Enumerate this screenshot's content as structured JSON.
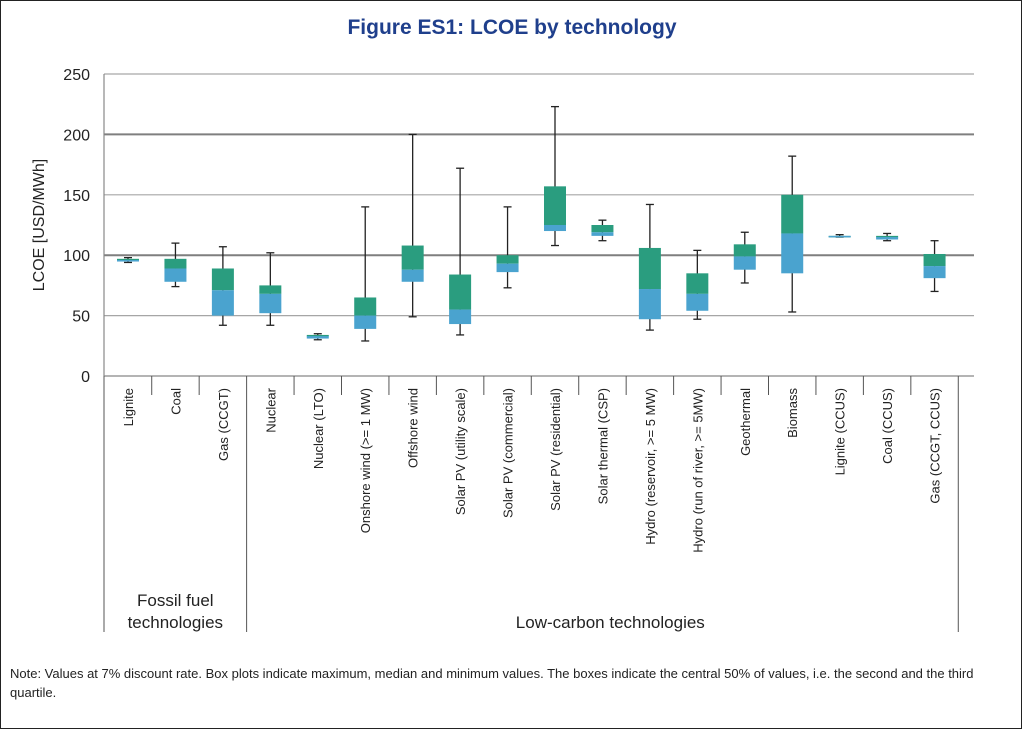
{
  "title": "Figure ES1: LCOE by technology",
  "note": "Note: Values at 7% discount rate. Box plots indicate maximum, median and minimum values. The boxes indicate the central 50% of values, i.e. the second and the third quartile.",
  "chart_data": {
    "type": "box",
    "ylabel": "LCOE [USD/MWh]",
    "ylim": [
      0,
      250
    ],
    "yticks": [
      0,
      50,
      100,
      150,
      200,
      250
    ],
    "grid": true,
    "colors": {
      "upper_box": "#2a9d7f",
      "lower_box": "#4aa3cf",
      "whisker": "#222222",
      "grid": "#a6a6a6",
      "grid_major": "#7f7f7f"
    },
    "groups": [
      {
        "label": "Fossil fuel technologies",
        "label_lines": [
          "Fossil fuel",
          "technologies"
        ],
        "count": 3
      },
      {
        "label": "Low-carbon technologies",
        "label_lines": [
          "Low-carbon technologies"
        ],
        "count": 15
      }
    ],
    "categories": [
      "Lignite",
      "Coal",
      "Gas (CCGT)",
      "Nuclear",
      "Nuclear (LTO)",
      "Onshore wind (>= 1 MW)",
      "Offshore wind",
      "Solar PV (utility scale)",
      "Solar PV (commercial)",
      "Solar PV (residential)",
      "Solar thermal (CSP)",
      "Hydro (reservoir, >= 5 MW)",
      "Hydro (run of river, >= 5MW)",
      "Geothermal",
      "Biomass",
      "Lignite (CCUS)",
      "Coal (CCUS)",
      "Gas (CCGT, CCUS)"
    ],
    "boxes": [
      {
        "min": 94,
        "q1": 95,
        "median": 96,
        "q3": 97,
        "max": 98
      },
      {
        "min": 74,
        "q1": 78,
        "median": 89,
        "q3": 97,
        "max": 110
      },
      {
        "min": 42,
        "q1": 50,
        "median": 71,
        "q3": 89,
        "max": 107
      },
      {
        "min": 42,
        "q1": 52,
        "median": 68,
        "q3": 75,
        "max": 102
      },
      {
        "min": 30,
        "q1": 31,
        "median": 33,
        "q3": 34,
        "max": 35
      },
      {
        "min": 29,
        "q1": 39,
        "median": 50,
        "q3": 65,
        "max": 140
      },
      {
        "min": 49,
        "q1": 78,
        "median": 88,
        "q3": 108,
        "max": 200
      },
      {
        "min": 34,
        "q1": 43,
        "median": 55,
        "q3": 84,
        "max": 172
      },
      {
        "min": 73,
        "q1": 86,
        "median": 93,
        "q3": 100,
        "max": 140
      },
      {
        "min": 108,
        "q1": 120,
        "median": 125,
        "q3": 157,
        "max": 223
      },
      {
        "min": 112,
        "q1": 116,
        "median": 119,
        "q3": 125,
        "max": 129
      },
      {
        "min": 38,
        "q1": 47,
        "median": 72,
        "q3": 106,
        "max": 142
      },
      {
        "min": 47,
        "q1": 54,
        "median": 68,
        "q3": 85,
        "max": 104
      },
      {
        "min": 77,
        "q1": 88,
        "median": 99,
        "q3": 109,
        "max": 119
      },
      {
        "min": 53,
        "q1": 85,
        "median": 118,
        "q3": 150,
        "max": 182
      },
      {
        "min": 115,
        "q1": 115,
        "median": 116,
        "q3": 116,
        "max": 117
      },
      {
        "min": 112,
        "q1": 113,
        "median": 115,
        "q3": 116,
        "max": 118
      },
      {
        "min": 70,
        "q1": 81,
        "median": 91,
        "q3": 101,
        "max": 112
      }
    ]
  }
}
